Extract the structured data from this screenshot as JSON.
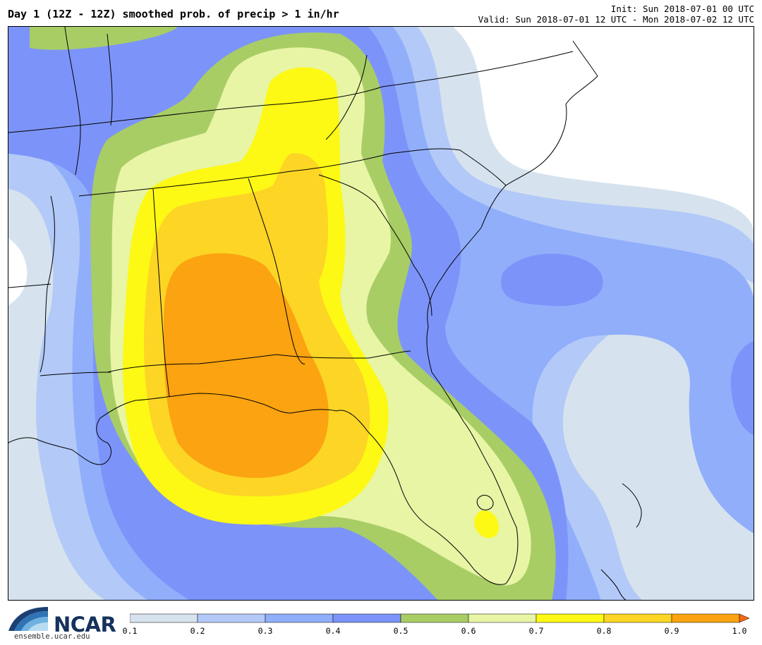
{
  "title": "Day 1 (12Z - 12Z) smoothed prob. of precip > 1 in/hr",
  "init": "Init: Sun 2018-07-01 00 UTC",
  "valid": "Valid: Sun 2018-07-01 12 UTC - Mon 2018-07-02 12 UTC",
  "logo": {
    "name": "NCAR",
    "url": "ensemble.ucar.edu"
  },
  "colorbar": {
    "ticks": [
      "0.1",
      "0.2",
      "0.3",
      "0.4",
      "0.5",
      "0.6",
      "0.7",
      "0.8",
      "0.9",
      "1.0"
    ],
    "colors": [
      "#d6e3ee",
      "#b3c9f7",
      "#91aefb",
      "#7c94f9",
      "#a8cd65",
      "#e7f5a5",
      "#fdf914",
      "#fdd525",
      "#fba310",
      "#f56a10"
    ]
  }
}
